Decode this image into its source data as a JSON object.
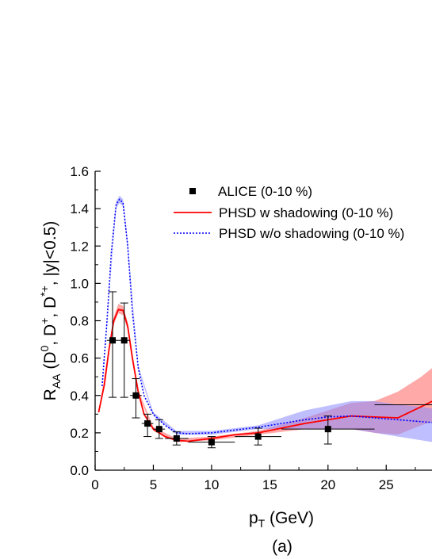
{
  "chart_data": {
    "type": "line",
    "xlabel": {
      "main": "p",
      "sub": "T",
      "rest": " (GeV)"
    },
    "ylabel": {
      "parts": [
        {
          "t": "R",
          "s": "n"
        },
        {
          "t": "AA",
          "s": "sub"
        },
        {
          "t": " (D",
          "s": "n"
        },
        {
          "t": "0",
          "s": "sup"
        },
        {
          "t": ", D",
          "s": "n"
        },
        {
          "t": "+",
          "s": "sup"
        },
        {
          "t": ", D",
          "s": "n"
        },
        {
          "t": "*+",
          "s": "sup"
        },
        {
          "t": ", |y|<0.5)",
          "s": "n"
        }
      ]
    },
    "panel_label": "(a)",
    "xlim": [
      0,
      29
    ],
    "ylim": [
      0,
      1.6
    ],
    "x_ticks": [
      0,
      5,
      10,
      15,
      20,
      25
    ],
    "x_tick_labels": [
      "0",
      "5",
      "10",
      "15",
      "20",
      "25"
    ],
    "y_ticks": [
      0,
      0.2,
      0.4,
      0.6,
      0.8,
      1.0,
      1.2,
      1.4,
      1.6
    ],
    "y_tick_labels": [
      "0.0",
      "0.2",
      "0.4",
      "0.6",
      "0.8",
      "1.0",
      "1.2",
      "1.4",
      "1.6"
    ],
    "legend_placement": "top-right",
    "series": [
      {
        "name": "ALICE (0-10 %)",
        "kind": "points",
        "color": "#000000",
        "points": [
          {
            "x": 1.5,
            "y": 0.695,
            "xerr": 0.5,
            "yerr": [
              0.305,
              0.26
            ]
          },
          {
            "x": 2.5,
            "y": 0.695,
            "xerr": 0.5,
            "yerr": [
              0.305,
              0.2
            ]
          },
          {
            "x": 3.5,
            "y": 0.4,
            "xerr": 0.5,
            "yerr": [
              0.12,
              0.09
            ]
          },
          {
            "x": 4.5,
            "y": 0.25,
            "xerr": 0.5,
            "yerr": [
              0.07,
              0.05
            ]
          },
          {
            "x": 5.5,
            "y": 0.22,
            "xerr": 0.5,
            "yerr": [
              0.05,
              0.05
            ]
          },
          {
            "x": 7,
            "y": 0.17,
            "xerr": 1,
            "yerr": [
              0.035,
              0.035
            ]
          },
          {
            "x": 10,
            "y": 0.15,
            "xerr": 2,
            "yerr": [
              0.03,
              0.03
            ]
          },
          {
            "x": 14,
            "y": 0.18,
            "xerr": 2,
            "yerr": [
              0.045,
              0.045
            ]
          },
          {
            "x": 20,
            "y": 0.22,
            "xerr": 4,
            "yerr": [
              0.08,
              0.07
            ]
          },
          {
            "x": 30,
            "y": 0.35,
            "xerr": 6,
            "yerr": [
              0.12,
              0.12
            ]
          }
        ]
      },
      {
        "name": "PHSD w shadowing (0-10 %)",
        "kind": "line",
        "color": "#ff0000",
        "band_color": "#ff7070",
        "points": [
          {
            "x": 0.3,
            "y": 0.31
          },
          {
            "x": 0.8,
            "y": 0.46
          },
          {
            "x": 1.2,
            "y": 0.65
          },
          {
            "x": 1.6,
            "y": 0.8
          },
          {
            "x": 2.0,
            "y": 0.86
          },
          {
            "x": 2.4,
            "y": 0.855
          },
          {
            "x": 2.8,
            "y": 0.77
          },
          {
            "x": 3.2,
            "y": 0.6
          },
          {
            "x": 3.7,
            "y": 0.42
          },
          {
            "x": 4.2,
            "y": 0.3
          },
          {
            "x": 5.0,
            "y": 0.22
          },
          {
            "x": 6.0,
            "y": 0.18
          },
          {
            "x": 7.0,
            "y": 0.16
          },
          {
            "x": 8.0,
            "y": 0.155
          },
          {
            "x": 10,
            "y": 0.17
          },
          {
            "x": 12,
            "y": 0.19
          },
          {
            "x": 14,
            "y": 0.2
          },
          {
            "x": 16,
            "y": 0.225
          },
          {
            "x": 18,
            "y": 0.25
          },
          {
            "x": 20,
            "y": 0.27
          },
          {
            "x": 22,
            "y": 0.29
          },
          {
            "x": 24,
            "y": 0.285
          },
          {
            "x": 26,
            "y": 0.28
          },
          {
            "x": 28,
            "y": 0.34
          },
          {
            "x": 29,
            "y": 0.37
          }
        ],
        "band": [
          {
            "x": 0.3,
            "lo": 0.31,
            "hi": 0.31
          },
          {
            "x": 1.6,
            "lo": 0.78,
            "hi": 0.82
          },
          {
            "x": 2.0,
            "lo": 0.84,
            "hi": 0.89
          },
          {
            "x": 2.4,
            "lo": 0.83,
            "hi": 0.88
          },
          {
            "x": 2.8,
            "lo": 0.75,
            "hi": 0.79
          },
          {
            "x": 3.7,
            "lo": 0.41,
            "hi": 0.43
          },
          {
            "x": 5.0,
            "lo": 0.21,
            "hi": 0.23
          },
          {
            "x": 7.0,
            "lo": 0.15,
            "hi": 0.17
          },
          {
            "x": 10,
            "lo": 0.16,
            "hi": 0.18
          },
          {
            "x": 14,
            "lo": 0.19,
            "hi": 0.21
          },
          {
            "x": 18,
            "lo": 0.22,
            "hi": 0.28
          },
          {
            "x": 22,
            "lo": 0.22,
            "hi": 0.36
          },
          {
            "x": 24,
            "lo": 0.2,
            "hi": 0.37
          },
          {
            "x": 26,
            "lo": 0.19,
            "hi": 0.42
          },
          {
            "x": 28,
            "lo": 0.24,
            "hi": 0.5
          },
          {
            "x": 29,
            "lo": 0.26,
            "hi": 0.55
          }
        ]
      },
      {
        "name": "PHSD w/o shadowing (0-10 %)",
        "kind": "dotted-line",
        "color": "#0000ff",
        "band_color": "#8a8aff",
        "points": [
          {
            "x": 0.6,
            "y": 0.45
          },
          {
            "x": 1.0,
            "y": 0.78
          },
          {
            "x": 1.4,
            "y": 1.17
          },
          {
            "x": 1.8,
            "y": 1.42
          },
          {
            "x": 2.1,
            "y": 1.45
          },
          {
            "x": 2.4,
            "y": 1.43
          },
          {
            "x": 2.8,
            "y": 1.2
          },
          {
            "x": 3.2,
            "y": 0.85
          },
          {
            "x": 3.7,
            "y": 0.55
          },
          {
            "x": 4.2,
            "y": 0.4
          },
          {
            "x": 5.0,
            "y": 0.3
          },
          {
            "x": 6.0,
            "y": 0.24
          },
          {
            "x": 7.0,
            "y": 0.2
          },
          {
            "x": 8.0,
            "y": 0.195
          },
          {
            "x": 10,
            "y": 0.2
          },
          {
            "x": 12,
            "y": 0.215
          },
          {
            "x": 14,
            "y": 0.23
          },
          {
            "x": 16,
            "y": 0.25
          },
          {
            "x": 18,
            "y": 0.27
          },
          {
            "x": 20,
            "y": 0.285
          },
          {
            "x": 22,
            "y": 0.29
          },
          {
            "x": 24,
            "y": 0.28
          },
          {
            "x": 26,
            "y": 0.27
          },
          {
            "x": 28,
            "y": 0.26
          },
          {
            "x": 29,
            "y": 0.255
          }
        ],
        "band": [
          {
            "x": 0.6,
            "lo": 0.45,
            "hi": 0.45
          },
          {
            "x": 1.8,
            "lo": 1.4,
            "hi": 1.44
          },
          {
            "x": 2.1,
            "lo": 1.43,
            "hi": 1.47
          },
          {
            "x": 2.4,
            "lo": 1.41,
            "hi": 1.45
          },
          {
            "x": 2.8,
            "lo": 1.18,
            "hi": 1.22
          },
          {
            "x": 3.7,
            "lo": 0.54,
            "hi": 0.56
          },
          {
            "x": 5.0,
            "lo": 0.29,
            "hi": 0.31
          },
          {
            "x": 7.0,
            "lo": 0.19,
            "hi": 0.21
          },
          {
            "x": 10,
            "lo": 0.19,
            "hi": 0.21
          },
          {
            "x": 14,
            "lo": 0.22,
            "hi": 0.24
          },
          {
            "x": 18,
            "lo": 0.22,
            "hi": 0.32
          },
          {
            "x": 22,
            "lo": 0.22,
            "hi": 0.37
          },
          {
            "x": 24,
            "lo": 0.2,
            "hi": 0.37
          },
          {
            "x": 26,
            "lo": 0.18,
            "hi": 0.35
          },
          {
            "x": 28,
            "lo": 0.16,
            "hi": 0.34
          },
          {
            "x": 29,
            "lo": 0.15,
            "hi": 0.33
          }
        ]
      }
    ]
  }
}
